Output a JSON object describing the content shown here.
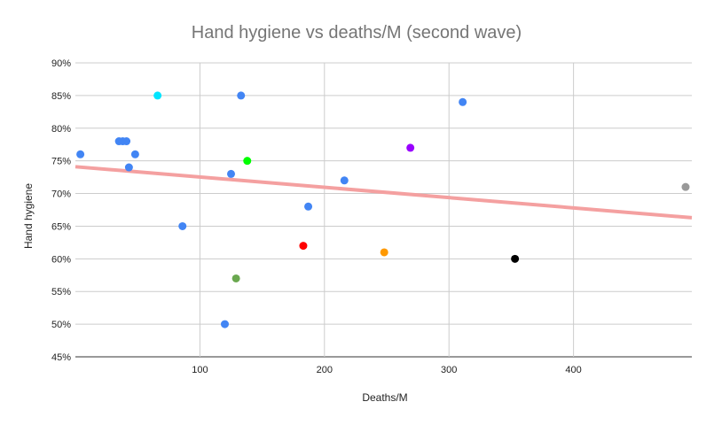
{
  "chart_data": {
    "type": "scatter",
    "title": "Hand hygiene vs deaths/M (second wave)",
    "xlabel": "Deaths/M",
    "ylabel": "Hand hygiene",
    "xlim": [
      0,
      495
    ],
    "ylim": [
      45,
      90
    ],
    "x_ticks": [
      100,
      200,
      300,
      400
    ],
    "y_ticks": [
      45,
      50,
      55,
      60,
      65,
      70,
      75,
      80,
      85,
      90
    ],
    "y_tick_labels": [
      "45%",
      "50%",
      "55%",
      "60%",
      "65%",
      "70%",
      "75%",
      "80%",
      "85%",
      "90%"
    ],
    "grid": true,
    "legend": "none",
    "points": [
      {
        "x": 4,
        "y": 76,
        "color": "#4285f4"
      },
      {
        "x": 35,
        "y": 78,
        "color": "#4285f4"
      },
      {
        "x": 38,
        "y": 78,
        "color": "#4285f4"
      },
      {
        "x": 41,
        "y": 78,
        "color": "#4285f4"
      },
      {
        "x": 43,
        "y": 74,
        "color": "#4285f4"
      },
      {
        "x": 48,
        "y": 76,
        "color": "#4285f4"
      },
      {
        "x": 66,
        "y": 85,
        "color": "#00e5ff"
      },
      {
        "x": 86,
        "y": 65,
        "color": "#4285f4"
      },
      {
        "x": 120,
        "y": 50,
        "color": "#4285f4"
      },
      {
        "x": 125,
        "y": 73,
        "color": "#4285f4"
      },
      {
        "x": 129,
        "y": 57,
        "color": "#6aa84f"
      },
      {
        "x": 133,
        "y": 85,
        "color": "#4285f4"
      },
      {
        "x": 138,
        "y": 75,
        "color": "#00ff00"
      },
      {
        "x": 183,
        "y": 62,
        "color": "#ff0000"
      },
      {
        "x": 187,
        "y": 68,
        "color": "#4285f4"
      },
      {
        "x": 216,
        "y": 72,
        "color": "#4285f4"
      },
      {
        "x": 248,
        "y": 61,
        "color": "#ff9900"
      },
      {
        "x": 269,
        "y": 77,
        "color": "#9900ff"
      },
      {
        "x": 311,
        "y": 84,
        "color": "#4285f4"
      },
      {
        "x": 353,
        "y": 60,
        "color": "#000000"
      },
      {
        "x": 490,
        "y": 71,
        "color": "#999999"
      }
    ],
    "trendline": {
      "x": [
        0,
        495
      ],
      "y": [
        74.1,
        66.3
      ],
      "color": "#f4a0a0"
    }
  }
}
